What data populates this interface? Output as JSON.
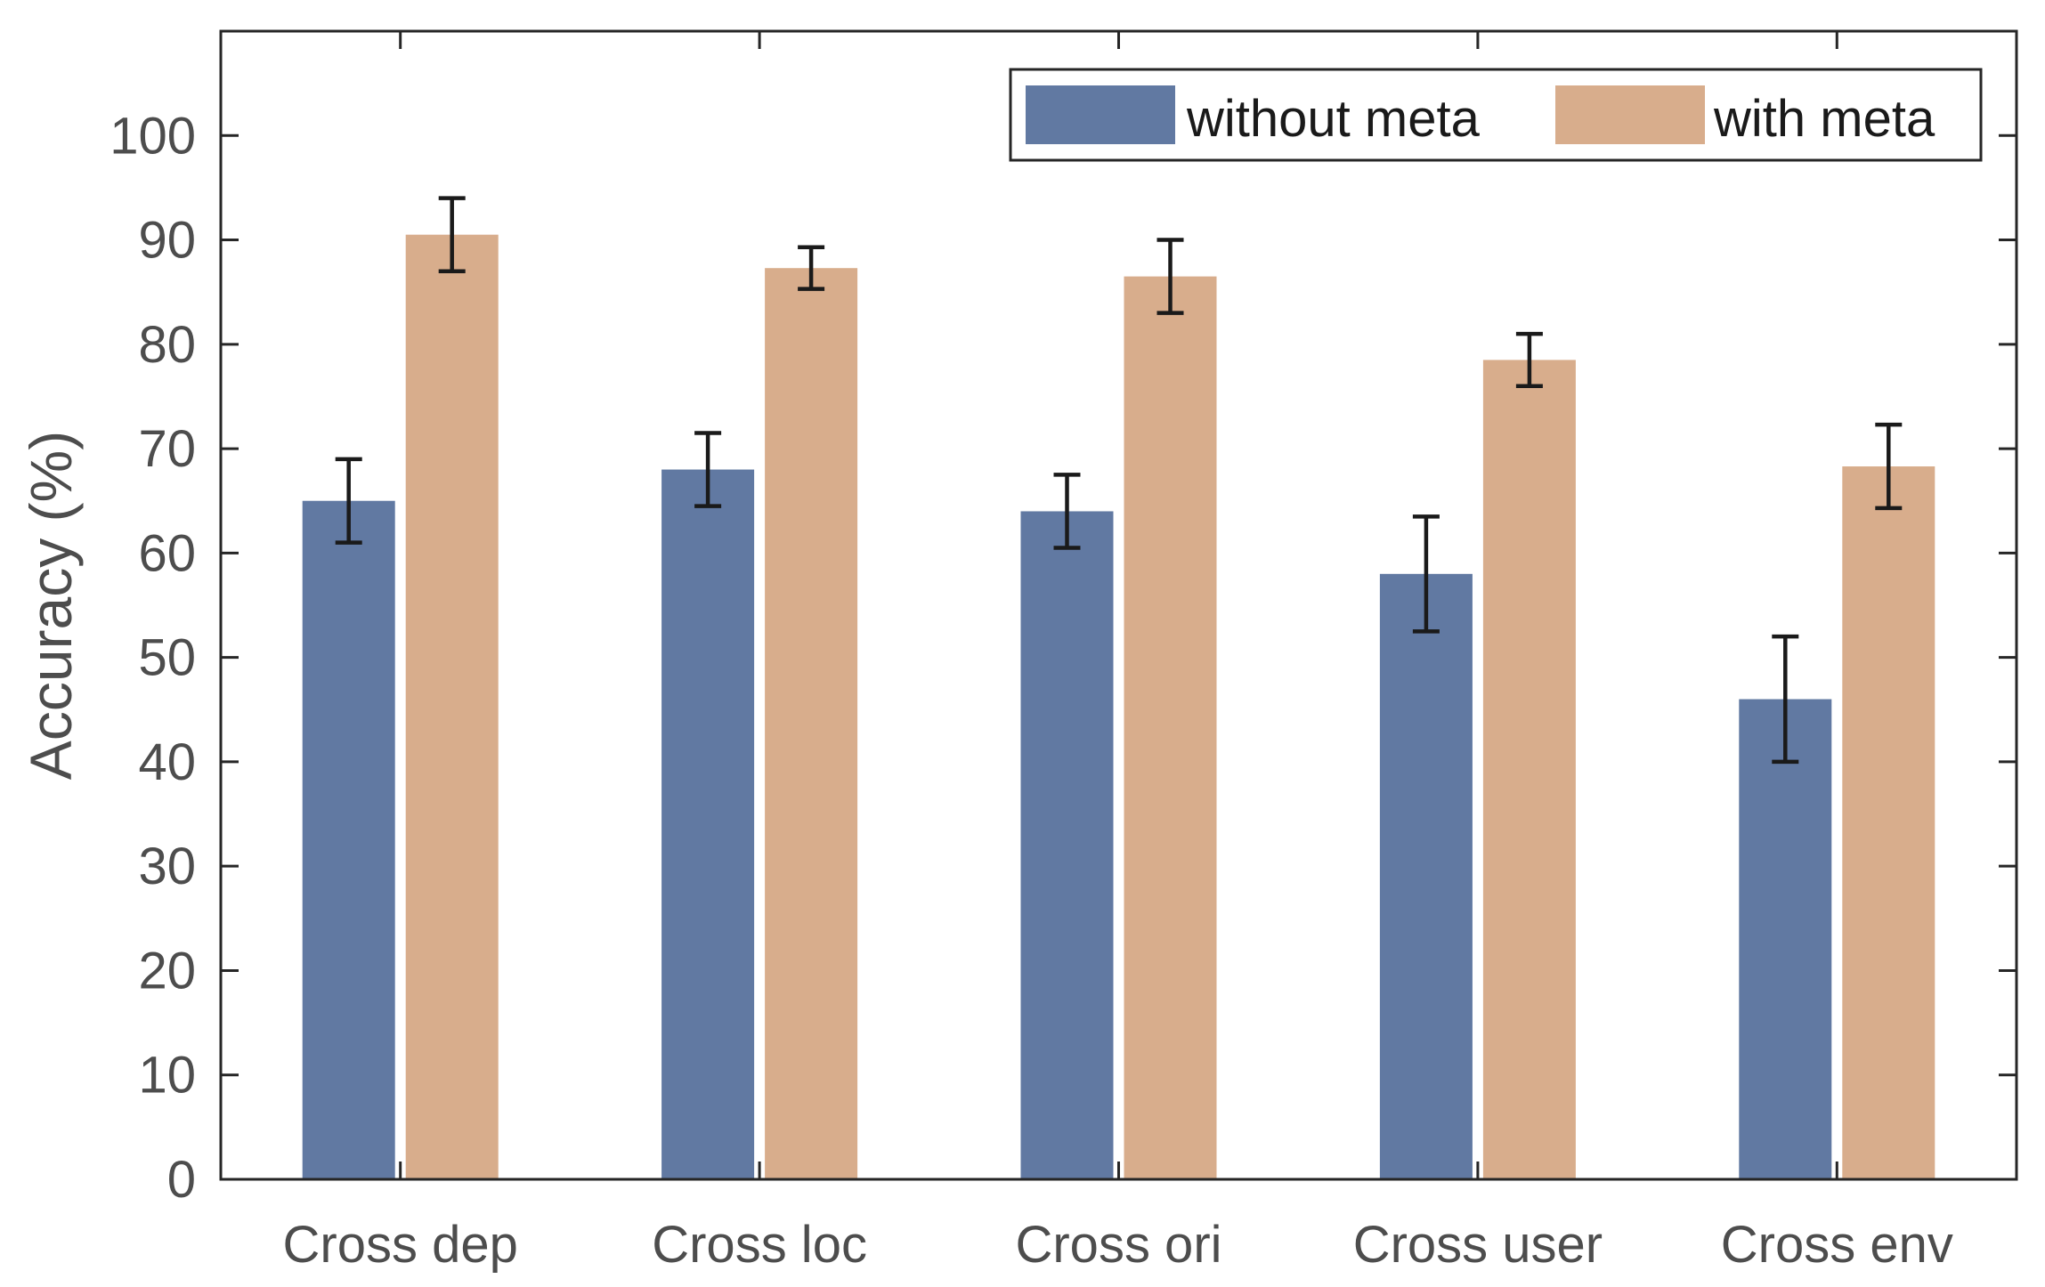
{
  "chart_data": {
    "type": "bar",
    "title": "",
    "xlabel": "",
    "ylabel": "Accuracy (%)",
    "ylim": [
      0,
      110
    ],
    "yticks": [
      0,
      10,
      20,
      30,
      40,
      50,
      60,
      70,
      80,
      90,
      100
    ],
    "grid": false,
    "legend_position": "top-right",
    "categories": [
      "Cross dep",
      "Cross loc",
      "Cross ori",
      "Cross user",
      "Cross env"
    ],
    "series": [
      {
        "name": "without meta",
        "color": "#6179a2",
        "values": [
          65,
          68,
          64,
          58,
          46
        ],
        "error_low": [
          61,
          64.5,
          60.5,
          52.5,
          40
        ],
        "error_high": [
          69,
          71.5,
          67.5,
          63.5,
          52
        ]
      },
      {
        "name": "with meta",
        "color": "#d8ad8c",
        "values": [
          90.5,
          87.3,
          86.5,
          78.5,
          68.3
        ],
        "error_low": [
          87,
          85.3,
          83,
          76,
          64.3
        ],
        "error_high": [
          94,
          89.3,
          90,
          81,
          72.3
        ]
      }
    ]
  }
}
